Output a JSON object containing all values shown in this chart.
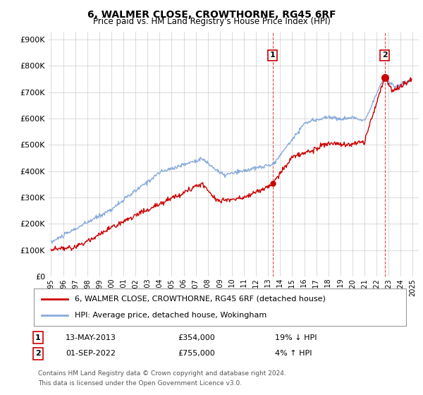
{
  "title": "6, WALMER CLOSE, CROWTHORNE, RG45 6RF",
  "subtitle": "Price paid vs. HM Land Registry's House Price Index (HPI)",
  "legend_line1": "6, WALMER CLOSE, CROWTHORNE, RG45 6RF (detached house)",
  "legend_line2": "HPI: Average price, detached house, Wokingham",
  "point1_date": "13-MAY-2013",
  "point1_price": "£354,000",
  "point1_hpi": "19% ↓ HPI",
  "point1_year": 2013.37,
  "point1_value": 354000,
  "point2_date": "01-SEP-2022",
  "point2_price": "£755,000",
  "point2_hpi": "4% ↑ HPI",
  "point2_year": 2022.67,
  "point2_value": 755000,
  "footnote1": "Contains HM Land Registry data © Crown copyright and database right 2024.",
  "footnote2": "This data is licensed under the Open Government Licence v3.0.",
  "red_color": "#cc0000",
  "blue_color": "#88aadd",
  "bg_color": "#ffffff",
  "grid_color": "#cccccc",
  "ylim": [
    0,
    930000
  ],
  "yticks": [
    0,
    100000,
    200000,
    300000,
    400000,
    500000,
    600000,
    700000,
    800000,
    900000
  ],
  "xlim_start": 1994.8,
  "xlim_end": 2025.5
}
